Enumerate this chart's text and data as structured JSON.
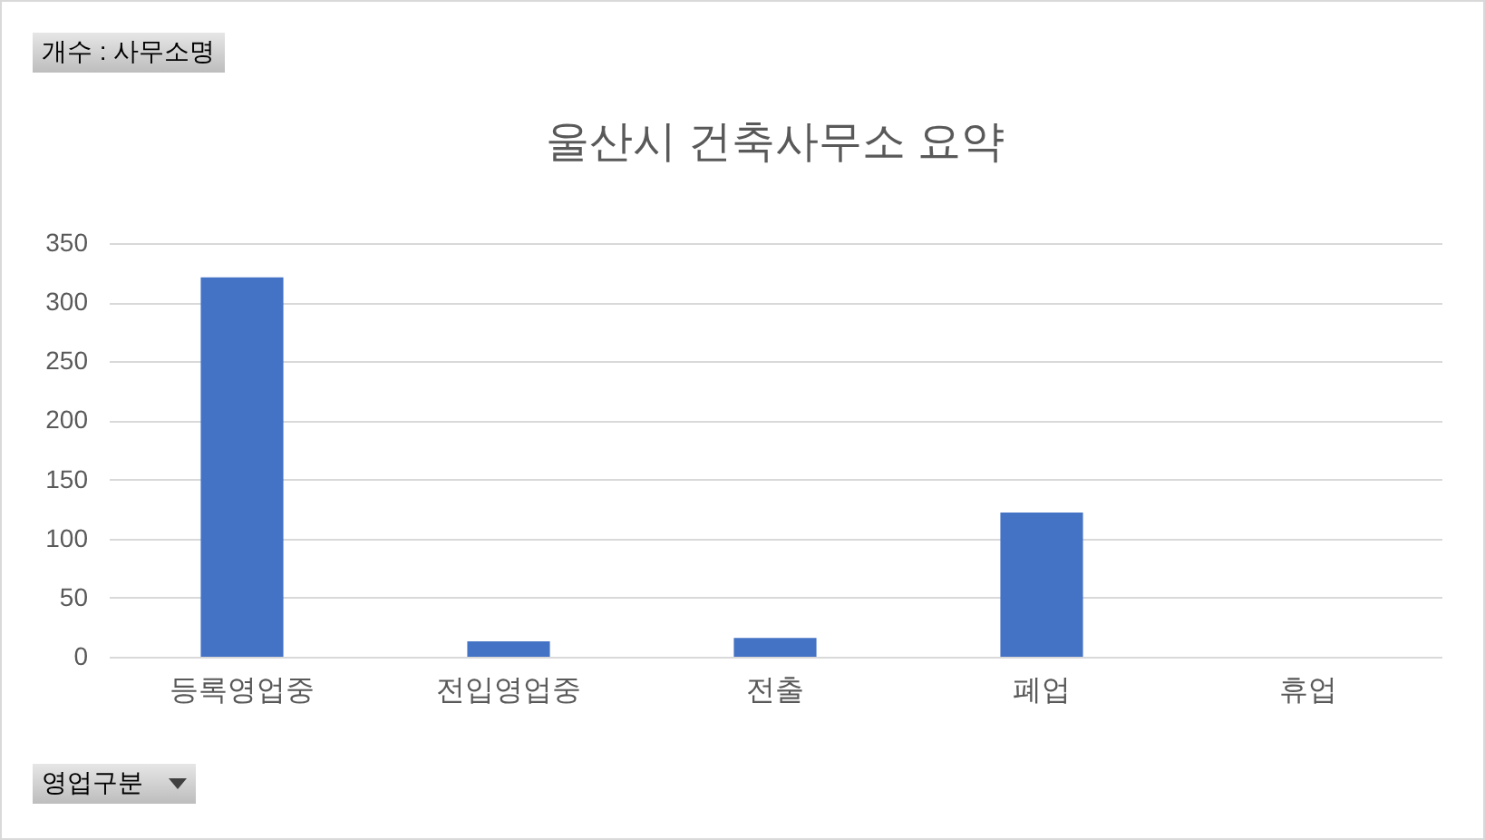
{
  "chart_data": {
    "type": "bar",
    "title": "울산시 건축사무소 요약",
    "categories": [
      "등록영업중",
      "전입영업중",
      "전출",
      "폐업",
      "휴업"
    ],
    "values": [
      321,
      13,
      16,
      122,
      0
    ],
    "color": "#4472c4",
    "ylim": [
      0,
      350
    ],
    "yticks": [
      0,
      50,
      100,
      150,
      200,
      250,
      300,
      350
    ],
    "grid": "y",
    "annotations": [
      "개수 : 사무소명",
      "영업구분"
    ]
  }
}
